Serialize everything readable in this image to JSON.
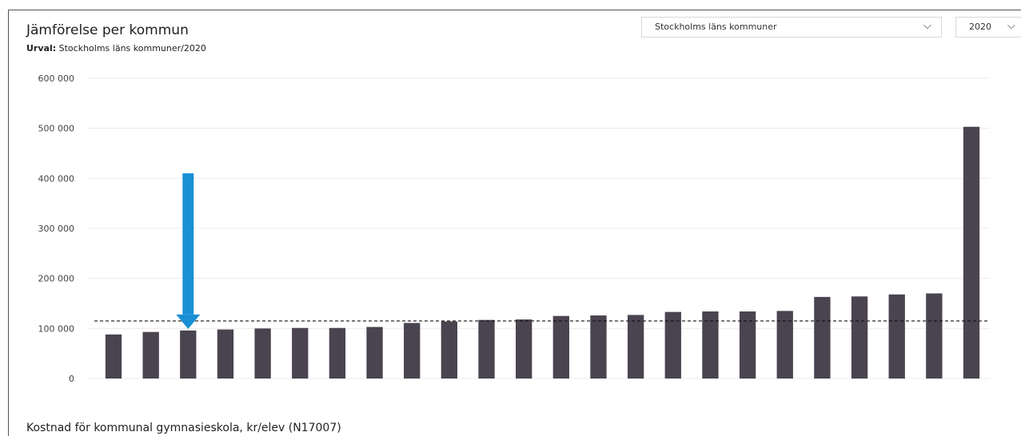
{
  "header": {
    "title": "Jämförelse per kommun",
    "subtitle_label": "Urval:",
    "subtitle_value": "Stockholms läns kommuner/2020"
  },
  "controls": {
    "region_select": {
      "value": "Stockholms läns kommuner",
      "icon": "chevron-down-icon"
    },
    "year_select": {
      "value": "2020",
      "icon": "chevron-down-icon"
    }
  },
  "footer": {
    "measure_label": "Kostnad för kommunal gymnasieskola, kr/elev (N17007)"
  },
  "chart_data": {
    "type": "bar",
    "title": "",
    "xlabel": "",
    "ylabel": "",
    "ylim": [
      0,
      600000
    ],
    "yticks": [
      0,
      100000,
      200000,
      300000,
      400000,
      500000,
      600000
    ],
    "ytick_labels": [
      "0",
      "100 000",
      "200 000",
      "300 000",
      "400 000",
      "500 000",
      "600 000"
    ],
    "grid": true,
    "reference_line": {
      "value": 115000,
      "style": "dashed"
    },
    "highlight": {
      "bar_index": 2,
      "marker": "arrow-down",
      "color": "#1a8fd6"
    },
    "bar_color": "#4a4350",
    "values": [
      88000,
      93000,
      96000,
      98000,
      100000,
      101000,
      101000,
      103000,
      111000,
      114000,
      117000,
      118000,
      125000,
      126000,
      127000,
      133000,
      134000,
      134000,
      135000,
      163000,
      164000,
      168000,
      170000,
      503000
    ]
  }
}
